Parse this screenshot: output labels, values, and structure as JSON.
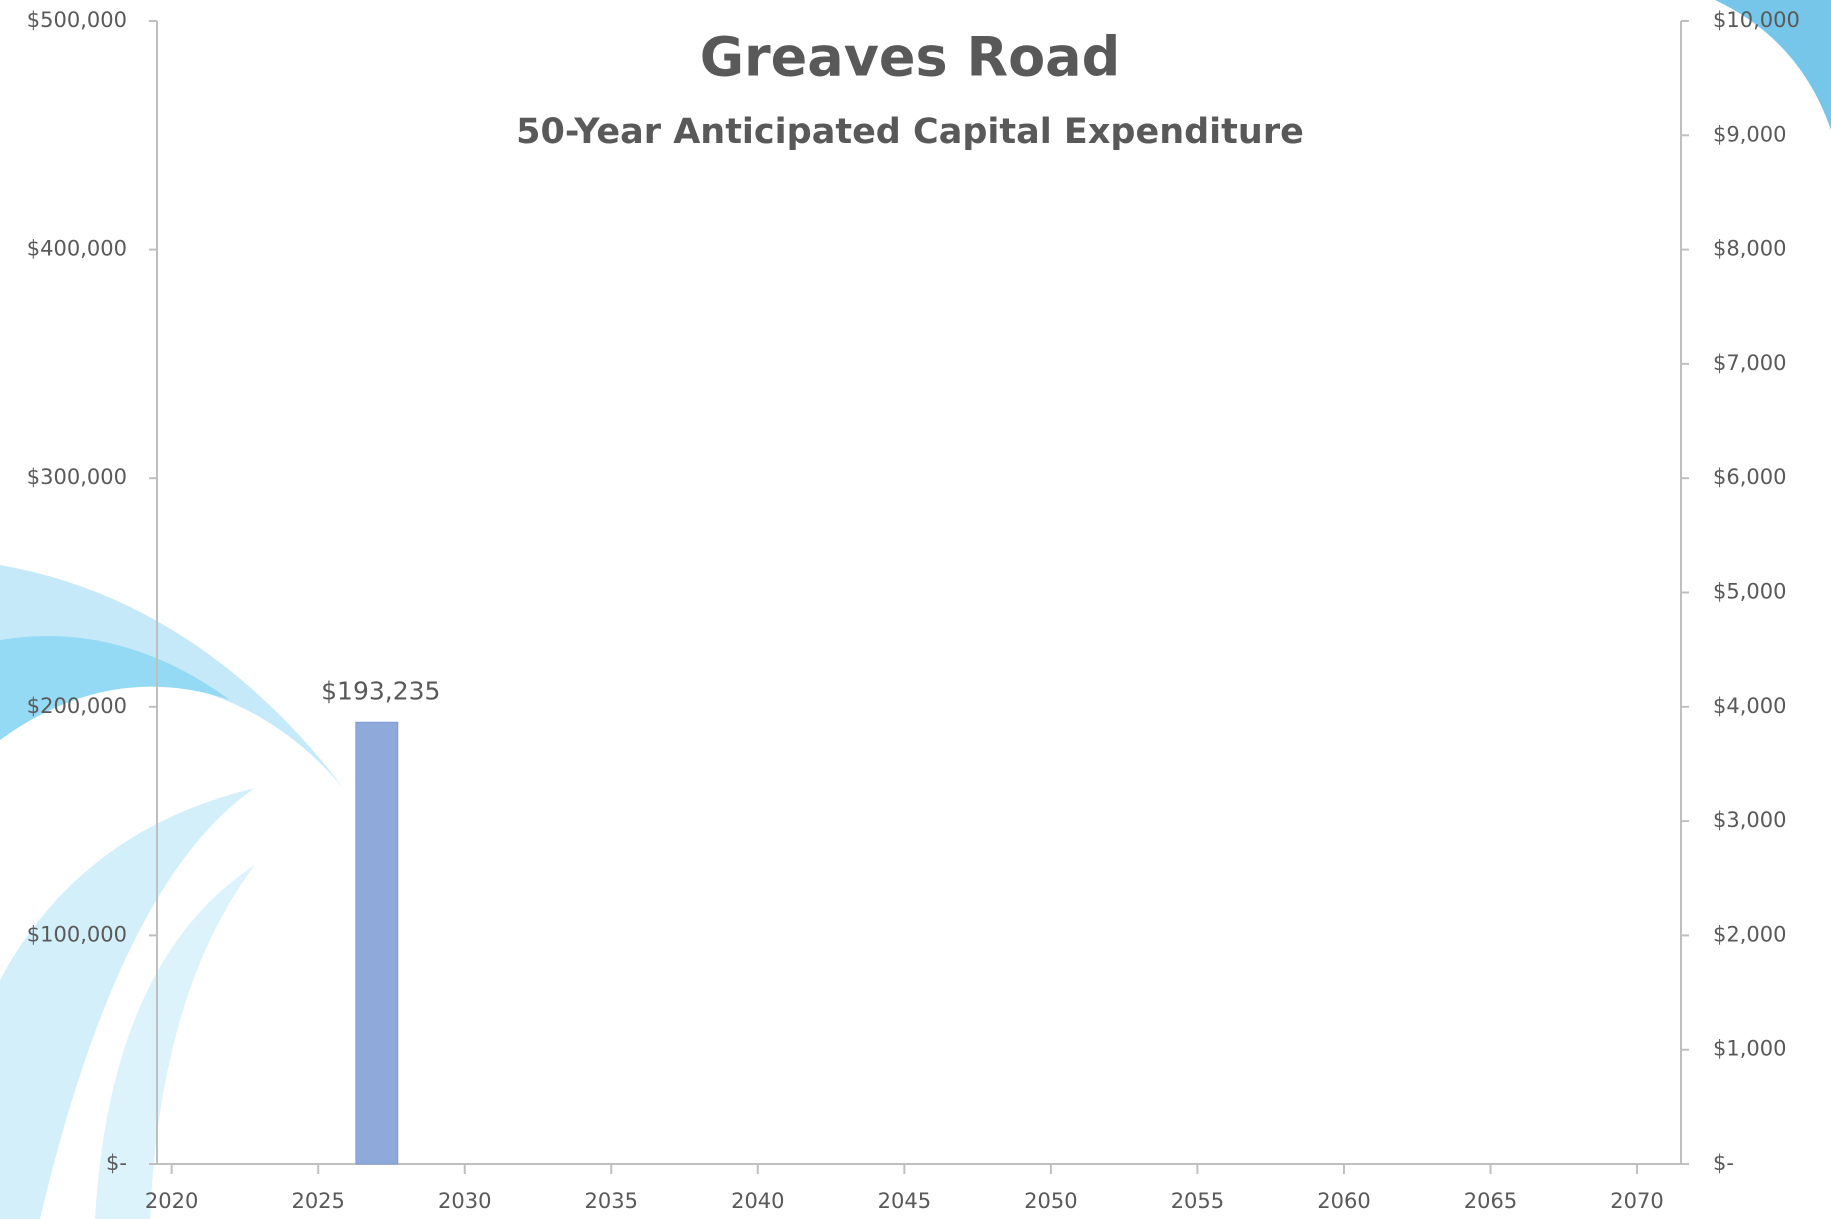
{
  "chart_data": {
    "type": "bar",
    "title": "Greaves Road",
    "subtitle": "50-Year Anticipated Capital Expenditure",
    "x": [
      2027
    ],
    "values": [
      193235
    ],
    "value_labels": [
      "$193,235"
    ],
    "color": "#8eaadb",
    "xlim": [
      2019.5,
      2071.5
    ],
    "xticks": [
      2020,
      2025,
      2030,
      2035,
      2040,
      2045,
      2050,
      2055,
      2060,
      2065,
      2070
    ],
    "ylim": [
      0,
      500000
    ],
    "yticks": [
      {
        "value": 0,
        "label": "$-"
      },
      {
        "value": 100000,
        "label": "$100,000"
      },
      {
        "value": 200000,
        "label": "$200,000"
      },
      {
        "value": 300000,
        "label": "$300,000"
      },
      {
        "value": 400000,
        "label": "$400,000"
      },
      {
        "value": 500000,
        "label": "$500,000"
      }
    ],
    "y2lim": [
      0,
      10000
    ],
    "y2ticks": [
      {
        "value": 0,
        "label": "$-"
      },
      {
        "value": 1000,
        "label": "$1,000"
      },
      {
        "value": 2000,
        "label": "$2,000"
      },
      {
        "value": 3000,
        "label": "$3,000"
      },
      {
        "value": 4000,
        "label": "$4,000"
      },
      {
        "value": 5000,
        "label": "$5,000"
      },
      {
        "value": 6000,
        "label": "$6,000"
      },
      {
        "value": 7000,
        "label": "$7,000"
      },
      {
        "value": 8000,
        "label": "$8,000"
      },
      {
        "value": 9000,
        "label": "$9,000"
      },
      {
        "value": 10000,
        "label": "$10,000"
      }
    ],
    "grid": false
  }
}
